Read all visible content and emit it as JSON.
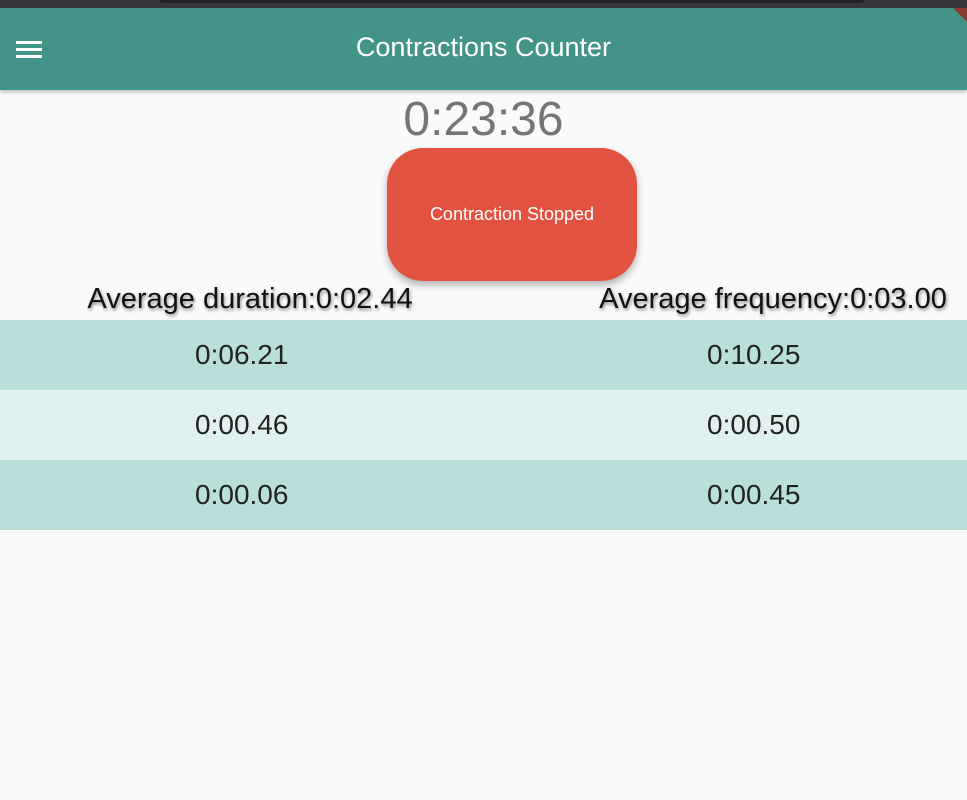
{
  "app_bar": {
    "title": "Contractions Counter",
    "menu_icon": "menu-icon"
  },
  "timer": "0:23:36",
  "contraction_button": {
    "label": "Contraction Stopped",
    "color": "#e25241"
  },
  "averages": {
    "duration": "Average duration:0:02.44",
    "frequency": "Average frequency:0:03.00"
  },
  "rows": [
    {
      "duration": "0:06.21",
      "frequency": "0:10.25"
    },
    {
      "duration": "0:00.46",
      "frequency": "0:00.50"
    },
    {
      "duration": "0:00.06",
      "frequency": "0:00.45"
    }
  ],
  "colors": {
    "app_bar": "#429488",
    "row_dark": "#badfdb",
    "row_light": "#e1f1ef"
  }
}
